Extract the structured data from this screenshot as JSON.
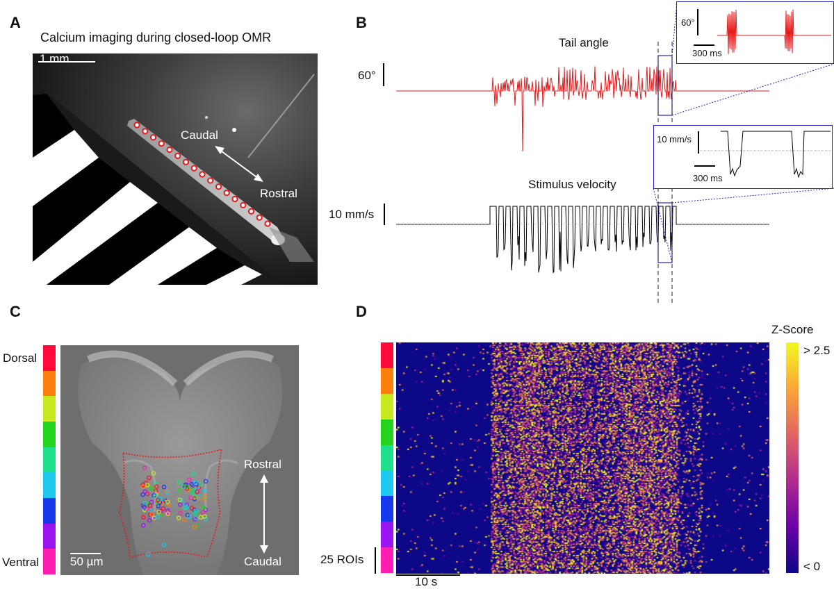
{
  "panels": {
    "a": {
      "letter": "A",
      "title": "Calcium imaging during closed-loop OMR",
      "scale_bar": "1 mm",
      "label_caudal": "Caudal",
      "label_rostral": "Rostral"
    },
    "b": {
      "letter": "B",
      "tail_title": "Tail angle",
      "tail_scale": "60°",
      "stim_title": "Stimulus velocity",
      "stim_scale": "10 mm/s",
      "inset_tail_scale": "60°",
      "inset_tail_time": "300 ms",
      "inset_stim_scale": "10 mm/s",
      "inset_stim_time": "300 ms"
    },
    "c": {
      "letter": "C",
      "label_dorsal": "Dorsal",
      "label_ventral": "Ventral",
      "scale_bar": "50 µm",
      "label_rostral": "Rostral",
      "label_caudal": "Caudal",
      "depth_colors": [
        "#ff0a3a",
        "#ff7f0e",
        "#c6ea1e",
        "#22d41e",
        "#1ee08c",
        "#1ec8ee",
        "#1838ee",
        "#9a14f0",
        "#ff1eb4"
      ]
    },
    "d": {
      "letter": "D",
      "colorbar_title": "Z-Score",
      "colorbar_max": "> 2.5",
      "colorbar_min": "< 0",
      "roi_scale": "25 ROIs",
      "time_scale": "10 s",
      "colormap": [
        "#0d0887",
        "#6a00a8",
        "#b12a90",
        "#e16462",
        "#fca636",
        "#f0f921"
      ]
    }
  }
}
